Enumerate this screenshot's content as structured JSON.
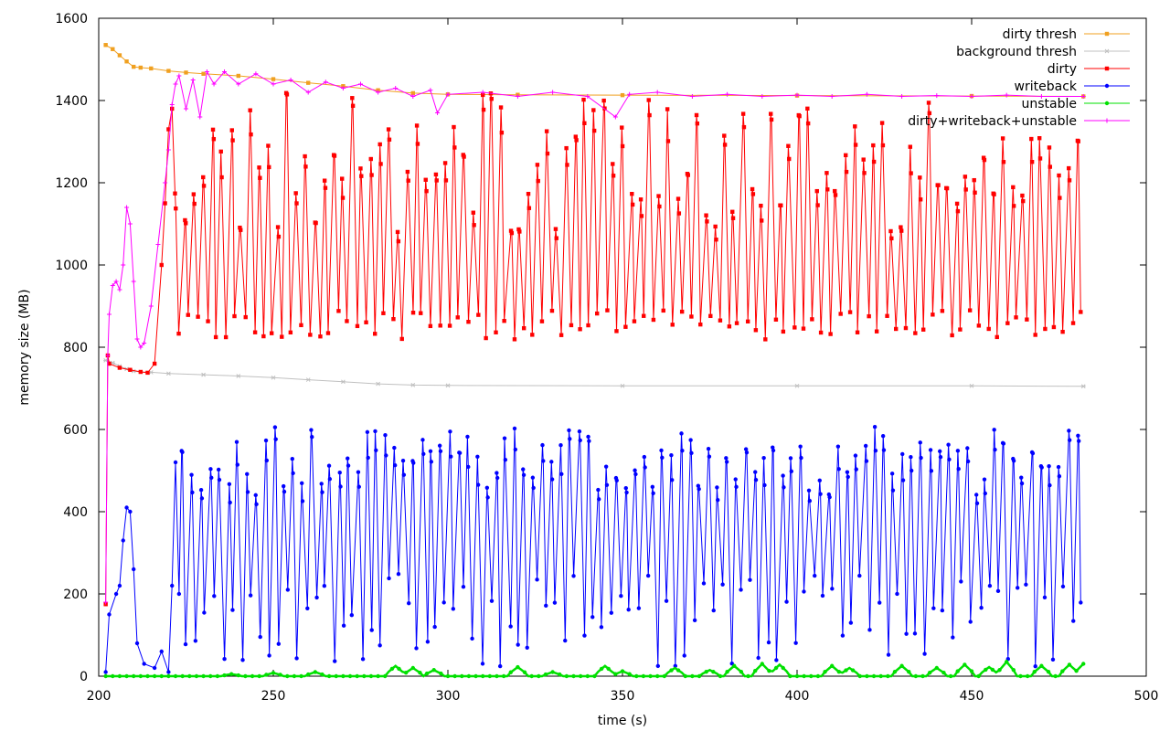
{
  "chart_data": {
    "type": "line",
    "title": "",
    "xlabel": "time (s)",
    "ylabel": "memory size (MB)",
    "xlim": [
      200,
      500
    ],
    "ylim": [
      0,
      1600
    ],
    "x_ticks": [
      200,
      250,
      300,
      350,
      400,
      450,
      500
    ],
    "y_ticks": [
      0,
      200,
      400,
      600,
      800,
      1000,
      1200,
      1400,
      1600
    ],
    "grid": false,
    "legend": "top-right",
    "x_range": [
      202,
      482
    ],
    "series": [
      {
        "name": "dirty thresh",
        "color": "#f0a020",
        "marker": "square",
        "points": [
          [
            202,
            1535
          ],
          [
            204,
            1525
          ],
          [
            206,
            1510
          ],
          [
            208,
            1495
          ],
          [
            210,
            1482
          ],
          [
            212,
            1480
          ],
          [
            215,
            1478
          ],
          [
            220,
            1472
          ],
          [
            225,
            1468
          ],
          [
            230,
            1465
          ],
          [
            240,
            1460
          ],
          [
            250,
            1452
          ],
          [
            260,
            1443
          ],
          [
            270,
            1435
          ],
          [
            280,
            1425
          ],
          [
            290,
            1418
          ],
          [
            300,
            1415
          ],
          [
            320,
            1414
          ],
          [
            350,
            1413
          ],
          [
            400,
            1412
          ],
          [
            450,
            1411
          ],
          [
            482,
            1410
          ]
        ]
      },
      {
        "name": "background thresh",
        "color": "#c0c0c0",
        "marker": "star",
        "points": [
          [
            202,
            768
          ],
          [
            204,
            762
          ],
          [
            206,
            754
          ],
          [
            208,
            747
          ],
          [
            210,
            742
          ],
          [
            212,
            740
          ],
          [
            215,
            739
          ],
          [
            220,
            736
          ],
          [
            230,
            733
          ],
          [
            240,
            730
          ],
          [
            250,
            726
          ],
          [
            260,
            721
          ],
          [
            270,
            716
          ],
          [
            280,
            711
          ],
          [
            290,
            708
          ],
          [
            300,
            707
          ],
          [
            350,
            706
          ],
          [
            400,
            706
          ],
          [
            450,
            706
          ],
          [
            482,
            705
          ]
        ]
      },
      {
        "name": "dirty",
        "color": "#ff0000",
        "marker": "square",
        "lead_in": [
          [
            202,
            175
          ],
          [
            202.6,
            780
          ],
          [
            203,
            760
          ],
          [
            206,
            750
          ],
          [
            209,
            745
          ],
          [
            212,
            740
          ],
          [
            214,
            738
          ],
          [
            216,
            760
          ],
          [
            218,
            1000
          ],
          [
            219,
            1150
          ],
          [
            220,
            1330
          ],
          [
            221,
            1380
          ]
        ],
        "wave": {
          "x_start": 221,
          "x_end": 482,
          "count": 98,
          "low": [
            815,
            890
          ],
          "high": [
            1080,
            1420
          ],
          "seed": 11
        }
      },
      {
        "name": "writeback",
        "color": "#0000ff",
        "marker": "circle",
        "lead_in": [
          [
            202,
            10
          ],
          [
            203,
            150
          ],
          [
            205,
            200
          ],
          [
            206,
            220
          ],
          [
            207,
            330
          ],
          [
            208,
            410
          ],
          [
            209,
            400
          ],
          [
            210,
            260
          ],
          [
            211,
            80
          ],
          [
            213,
            30
          ],
          [
            216,
            20
          ],
          [
            218,
            60
          ],
          [
            220,
            10
          ],
          [
            221,
            220
          ],
          [
            222,
            520
          ],
          [
            223,
            200
          ]
        ],
        "wave": {
          "x_start": 223,
          "x_end": 482,
          "count": 98,
          "low": [
            20,
            250
          ],
          "high": [
            440,
            610
          ],
          "seed": 37
        }
      },
      {
        "name": "unstable",
        "color": "#00e000",
        "marker": "circle",
        "steps": {
          "x_start": 202,
          "x_end": 482,
          "base": 0,
          "spikes": [
            [
              238,
              5
            ],
            [
              250,
              8
            ],
            [
              262,
              10
            ],
            [
              285,
              25
            ],
            [
              290,
              20
            ],
            [
              296,
              15
            ],
            [
              320,
              22
            ],
            [
              330,
              10
            ],
            [
              345,
              25
            ],
            [
              350,
              12
            ],
            [
              365,
              20
            ],
            [
              375,
              15
            ],
            [
              382,
              25
            ],
            [
              390,
              30
            ],
            [
              395,
              28
            ],
            [
              410,
              25
            ],
            [
              415,
              20
            ],
            [
              430,
              25
            ],
            [
              440,
              20
            ],
            [
              448,
              28
            ],
            [
              455,
              22
            ],
            [
              460,
              35
            ],
            [
              470,
              25
            ],
            [
              478,
              28
            ],
            [
              482,
              30
            ]
          ]
        }
      },
      {
        "name": "dirty+writeback+unstable",
        "color": "#ff00ff",
        "marker": "plus",
        "points": [
          [
            202,
            180
          ],
          [
            202.6,
            780
          ],
          [
            203,
            880
          ],
          [
            204,
            950
          ],
          [
            205,
            960
          ],
          [
            206,
            940
          ],
          [
            207,
            1000
          ],
          [
            208,
            1140
          ],
          [
            209,
            1100
          ],
          [
            210,
            960
          ],
          [
            211,
            820
          ],
          [
            212,
            800
          ],
          [
            213,
            810
          ],
          [
            215,
            900
          ],
          [
            217,
            1050
          ],
          [
            219,
            1200
          ],
          [
            220,
            1280
          ],
          [
            221,
            1390
          ],
          [
            222,
            1440
          ],
          [
            223,
            1460
          ],
          [
            225,
            1380
          ],
          [
            227,
            1450
          ],
          [
            229,
            1360
          ],
          [
            231,
            1470
          ],
          [
            233,
            1440
          ],
          [
            236,
            1470
          ],
          [
            240,
            1440
          ],
          [
            245,
            1465
          ],
          [
            250,
            1440
          ],
          [
            255,
            1450
          ],
          [
            260,
            1420
          ],
          [
            265,
            1445
          ],
          [
            270,
            1430
          ],
          [
            275,
            1440
          ],
          [
            280,
            1420
          ],
          [
            285,
            1430
          ],
          [
            290,
            1410
          ],
          [
            295,
            1425
          ],
          [
            297,
            1370
          ],
          [
            300,
            1415
          ],
          [
            310,
            1420
          ],
          [
            320,
            1410
          ],
          [
            330,
            1420
          ],
          [
            340,
            1410
          ],
          [
            348,
            1360
          ],
          [
            352,
            1415
          ],
          [
            360,
            1420
          ],
          [
            370,
            1410
          ],
          [
            380,
            1415
          ],
          [
            390,
            1410
          ],
          [
            400,
            1413
          ],
          [
            410,
            1410
          ],
          [
            420,
            1415
          ],
          [
            430,
            1410
          ],
          [
            440,
            1412
          ],
          [
            450,
            1410
          ],
          [
            460,
            1413
          ],
          [
            470,
            1410
          ],
          [
            482,
            1410
          ]
        ]
      }
    ]
  }
}
